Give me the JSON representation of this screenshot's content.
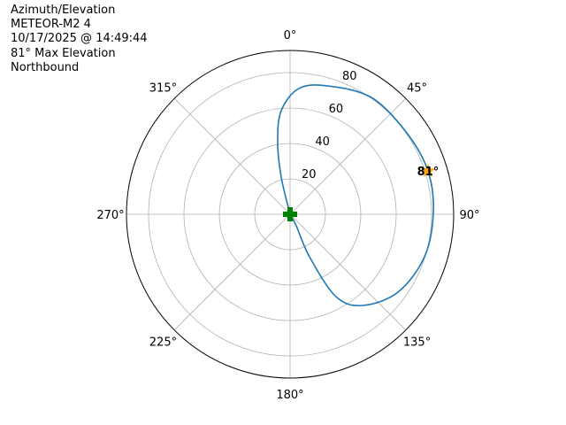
{
  "chart_data": {
    "type": "polar-line",
    "title_lines": [
      "Azimuth/Elevation",
      "METEOR-M2 4",
      "10/17/2025 @ 14:49:44",
      "81° Max Elevation",
      "Northbound"
    ],
    "theta_direction": "clockwise",
    "theta_zero": "north",
    "theta_ticks": [
      "0°",
      "45°",
      "90°",
      "135°",
      "180°",
      "225°",
      "270°",
      "315°"
    ],
    "r_ticks": [
      "20",
      "40",
      "60",
      "80"
    ],
    "r_tick_values": [
      20,
      40,
      60,
      80
    ],
    "r_lim": [
      0,
      92.5
    ],
    "grid": true,
    "series": [
      {
        "color": "#1f77b4",
        "azimuth": [
          0,
          346.6,
          350.3,
          355.1,
          4,
          16.2,
          34.9,
          55.1,
          72.6,
          89.3,
          107.5,
          125.8,
          141.5,
          150.8,
          155.4,
          151.7,
          150
        ],
        "r": [
          0,
          21.6,
          41.6,
          58.7,
          71.2,
          75.5,
          80.4,
          80.4,
          81.7,
          81,
          79.7,
          75.2,
          65.8,
          53.3,
          26.4,
          7.4,
          0
        ]
      }
    ],
    "start_marker": {
      "azimuth": 0,
      "r": 0,
      "color": "#008000",
      "shape": "plus"
    },
    "max_marker": {
      "azimuth": 72.6,
      "r": 81.7,
      "color": "#ffa500",
      "shape": "star",
      "label": "81°"
    }
  }
}
